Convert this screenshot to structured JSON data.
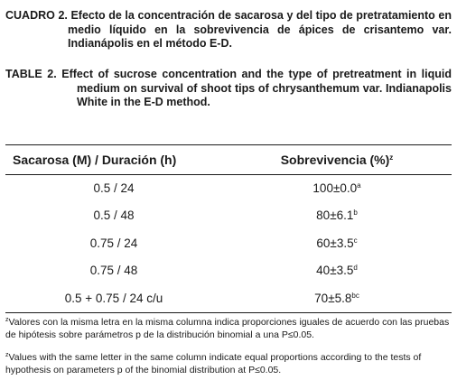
{
  "caption_es": {
    "label": "CUADRO 2.",
    "text": "Efecto de la concentración de sacarosa y del tipo de pretratamiento en medio líquido en la sobrevivencia de ápices de crisantemo var. Indianápolis en el método E-D."
  },
  "caption_en": {
    "label": "TABLE 2.",
    "text": "Effect of sucrose concentration and the type of pretreatment in liquid medium on survival of shoot tips of chrysanthemum var. Indianapolis White in the E-D method."
  },
  "table": {
    "headers": {
      "col1": "Sacarosa (M) / Duración (h)",
      "col2": "Sobrevivencia  (%)",
      "col2_sup": "z"
    },
    "rows": [
      {
        "treatment": "0.5 / 24",
        "value": "100±0.0",
        "sup": "a"
      },
      {
        "treatment": "0.5 / 48",
        "value": "80±6.1",
        "sup": "b"
      },
      {
        "treatment": "0.75 / 24",
        "value": "60±3.5",
        "sup": "c"
      },
      {
        "treatment": "0.75 / 48",
        "value": "40±3.5",
        "sup": "d"
      },
      {
        "treatment": "0.5 + 0.75 / 24 c/u",
        "value": "70±5.8",
        "sup": "bc"
      }
    ]
  },
  "footnote_es": {
    "sup": "z",
    "text": "Valores con la misma letra en la misma columna indica proporciones iguales de acuerdo con las pruebas de hipótesis sobre parámetros p de la distribución binomial a una  P≤0.05."
  },
  "footnote_en": {
    "sup": "z",
    "text": "Values with the same letter in the same column indicate equal proportions according to the tests of hypothesis on parameters p of the binomial distribution at P≤0.05."
  }
}
